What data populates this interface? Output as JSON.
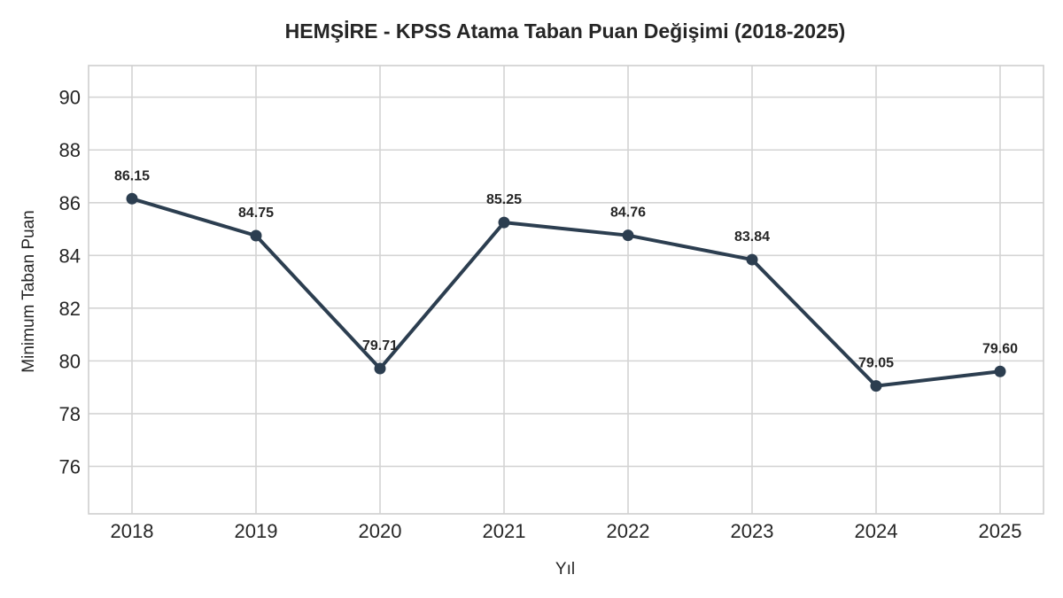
{
  "chart_data": {
    "type": "line",
    "title": "HEMŞİRE - KPSS Atama Taban Puan Değişimi (2018-2025)",
    "xlabel": "Yıl",
    "ylabel": "Minimum Taban Puan",
    "categories": [
      "2018",
      "2019",
      "2020",
      "2021",
      "2022",
      "2023",
      "2024",
      "2025"
    ],
    "series": [
      {
        "values": [
          86.15,
          84.75,
          79.71,
          85.25,
          84.76,
          83.84,
          79.05,
          79.6
        ],
        "data_labels": [
          "86.15",
          "84.75",
          "79.71",
          "85.25",
          "84.76",
          "83.84",
          "79.05",
          "79.60"
        ],
        "color": "#2c3e50"
      }
    ],
    "ylim": [
      74.2,
      91.2
    ],
    "yticks": [
      76,
      78,
      80,
      82,
      84,
      86,
      88,
      90
    ],
    "grid": true,
    "marker": "circle"
  }
}
